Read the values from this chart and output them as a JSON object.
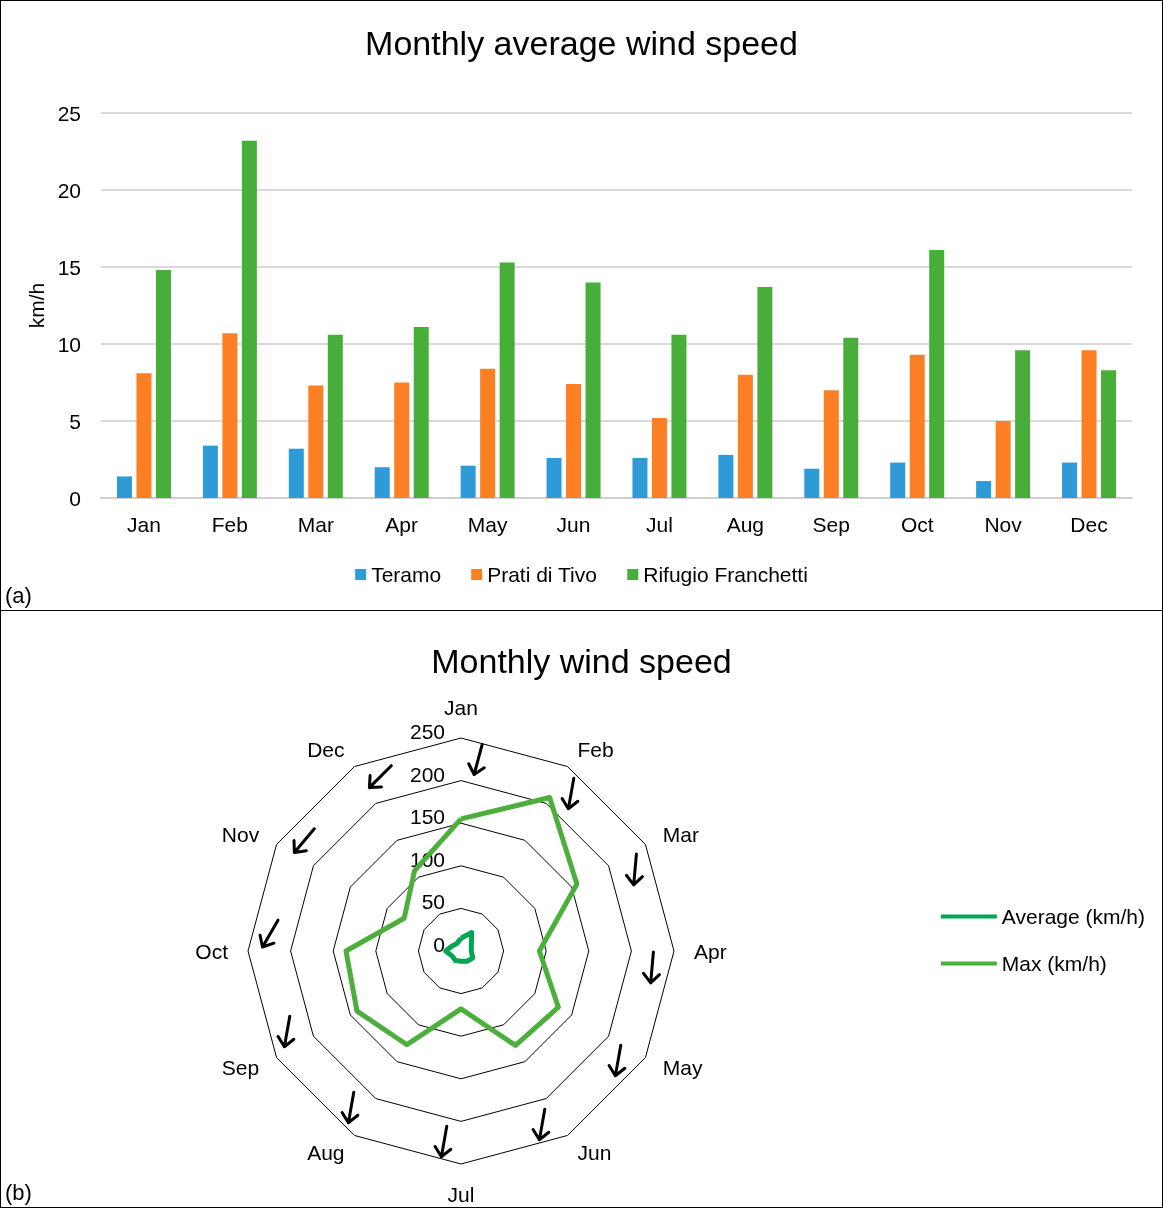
{
  "chart_data": [
    {
      "type": "bar",
      "title": "Monthly average wind speed",
      "ylabel": "km/h",
      "categories": [
        "Jan",
        "Feb",
        "Mar",
        "Apr",
        "May",
        "Jun",
        "Jul",
        "Aug",
        "Sep",
        "Oct",
        "Nov",
        "Dec"
      ],
      "series": [
        {
          "name": "Teramo",
          "color": "#2e9ad6",
          "values": [
            1.4,
            3.4,
            3.2,
            2.0,
            2.1,
            2.6,
            2.6,
            2.8,
            1.9,
            2.3,
            1.1,
            2.3
          ]
        },
        {
          "name": "Prati di Tivo",
          "color": "#fd7f24",
          "values": [
            8.1,
            10.7,
            7.3,
            7.5,
            8.4,
            7.4,
            5.2,
            8.0,
            7.0,
            9.3,
            5.0,
            9.6
          ]
        },
        {
          "name": "Rifugio Franchetti",
          "color": "#48ae3a",
          "values": [
            14.8,
            23.2,
            10.6,
            11.1,
            15.3,
            14.0,
            10.6,
            13.7,
            10.4,
            16.1,
            9.6,
            8.3
          ]
        }
      ],
      "ylim": [
        0,
        25
      ],
      "yticks": [
        0,
        5,
        10,
        15,
        20,
        25
      ],
      "grid": "y",
      "legend": "bottom",
      "annotations": [
        "(a)"
      ]
    },
    {
      "type": "radar",
      "title": "Monthly wind speed",
      "categories": [
        "Jan",
        "Feb",
        "Mar",
        "Apr",
        "May",
        "Jun",
        "Jul",
        "Aug",
        "Sep",
        "Oct",
        "Nov",
        "Dec"
      ],
      "series": [
        {
          "name": "Average (km/h)",
          "color": "#00a651",
          "values": [
            15,
            25,
            14,
            12,
            16,
            14,
            12,
            13,
            12,
            18,
            12,
            10
          ]
        },
        {
          "name": "Max (km/h)",
          "color": "#4caf3c",
          "values": [
            155,
            208,
            157,
            92,
            132,
            128,
            68,
            127,
            141,
            135,
            77,
            109
          ]
        }
      ],
      "ylim": [
        0,
        250
      ],
      "yticks": [
        0,
        50,
        100,
        150,
        200,
        250
      ],
      "legend": "right",
      "marker": "none",
      "annotations": [
        "(b)"
      ]
    }
  ]
}
